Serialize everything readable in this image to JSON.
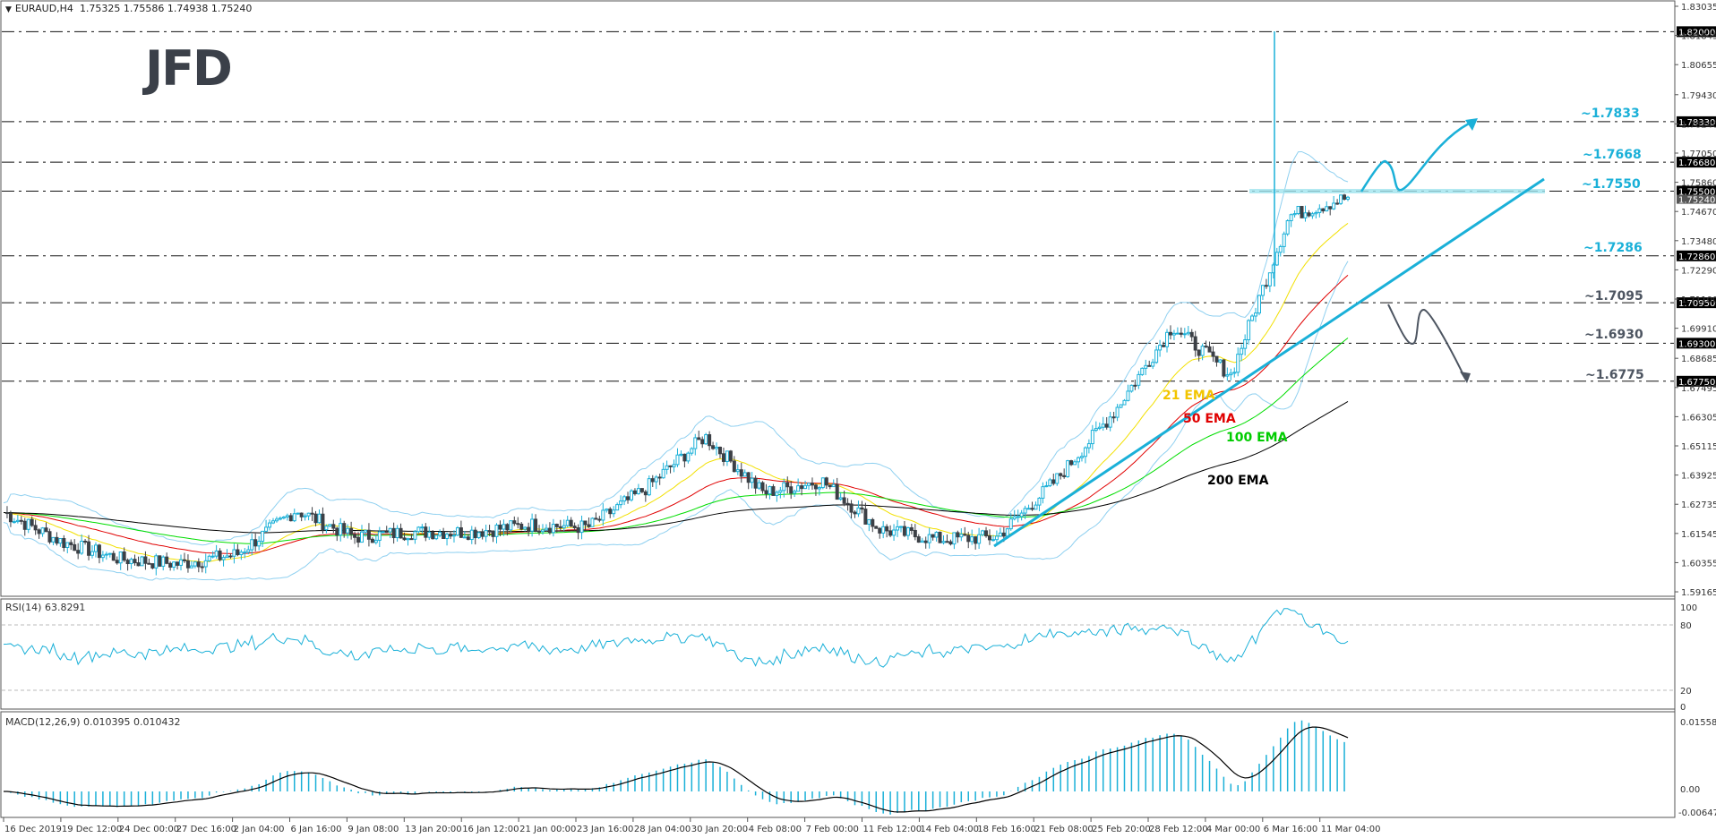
{
  "header": {
    "symbol": "EURAUD,H4",
    "ohlc": "1.75325 1.75586 1.74938 1.75240"
  },
  "logo": "JFD",
  "rsi": {
    "label": "RSI(14) 63.8291",
    "levels": [
      "100",
      "80",
      "20",
      "0"
    ]
  },
  "macd": {
    "label": "MACD(12,26,9) 0.010395 0.010432",
    "levels": [
      "0.015581",
      "0.00",
      "-0.006478"
    ]
  },
  "colors": {
    "accent": "#1ab0d8",
    "bear": "#3d4046",
    "ema21": "#f2e000",
    "ema50": "#e00000",
    "ema100": "#00dd00",
    "ema200": "#000000",
    "bands": "#8fd0f0",
    "support_text": "#4d5561"
  },
  "chart_data": {
    "type": "line",
    "title": "EURAUD,H4 1.75325 1.75586 1.74938 1.75240",
    "xlabel": "",
    "ylabel": "",
    "ylim": [
      1.59165,
      1.83035
    ],
    "price_ticks": [
      "1.83035",
      "1.81845",
      "1.80655",
      "1.79430",
      "1.78240",
      "1.77050",
      "1.75860",
      "1.74670",
      "1.73480",
      "1.72290",
      "1.71100",
      "1.69910",
      "1.68685",
      "1.67495",
      "1.66305",
      "1.65115",
      "1.63925",
      "1.62735",
      "1.61545",
      "1.60355",
      "1.59165"
    ],
    "x_ticks": [
      "16 Dec 2019",
      "19 Dec 12:00",
      "24 Dec 00:00",
      "27 Dec 16:00",
      "2 Jan 04:00",
      "6 Jan 16:00",
      "9 Jan 08:00",
      "13 Jan 20:00",
      "16 Jan 12:00",
      "21 Jan 00:00",
      "23 Jan 16:00",
      "28 Jan 04:00",
      "30 Jan 20:00",
      "4 Feb 08:00",
      "7 Feb 00:00",
      "11 Feb 12:00",
      "14 Feb 04:00",
      "18 Feb 16:00",
      "21 Feb 08:00",
      "25 Feb 20:00",
      "28 Feb 12:00",
      "4 Mar 00:00",
      "6 Mar 16:00",
      "11 Mar 04:00"
    ],
    "horizontal_levels": [
      {
        "price": 1.82,
        "tag": "1.82000",
        "label": ""
      },
      {
        "price": 1.7833,
        "tag": "1.78330",
        "label": "~1.7833"
      },
      {
        "price": 1.7668,
        "tag": "1.76680",
        "label": "~1.7668"
      },
      {
        "price": 1.755,
        "tag": "1.75500",
        "label": "~1.7550"
      },
      {
        "price": 1.7286,
        "tag": "1.72860",
        "label": "~1.7286"
      },
      {
        "price": 1.7095,
        "tag": "1.70950",
        "label": "~1.7095"
      },
      {
        "price": 1.693,
        "tag": "1.69300",
        "label": "~1.6930"
      },
      {
        "price": 1.6775,
        "tag": "1.67750",
        "label": "~1.6775"
      }
    ],
    "current_price": "1.75240",
    "series": [
      {
        "name": "21 EMA",
        "color": "#f2e000"
      },
      {
        "name": "50 EMA",
        "color": "#e00000"
      },
      {
        "name": "100 EMA",
        "color": "#00dd00"
      },
      {
        "name": "200 EMA",
        "color": "#000000"
      }
    ],
    "approx_close_path": [
      {
        "x": "16 Dec 2019",
        "y": 1.624
      },
      {
        "x": "19 Dec 12:00",
        "y": 1.612
      },
      {
        "x": "24 Dec 00:00",
        "y": 1.605
      },
      {
        "x": "27 Dec 16:00",
        "y": 1.603
      },
      {
        "x": "2 Jan 04:00",
        "y": 1.607
      },
      {
        "x": "6 Jan 16:00",
        "y": 1.625
      },
      {
        "x": "9 Jan 08:00",
        "y": 1.614
      },
      {
        "x": "13 Jan 20:00",
        "y": 1.616
      },
      {
        "x": "16 Jan 12:00",
        "y": 1.616
      },
      {
        "x": "21 Jan 00:00",
        "y": 1.619
      },
      {
        "x": "23 Jan 16:00",
        "y": 1.618
      },
      {
        "x": "28 Jan 04:00",
        "y": 1.634
      },
      {
        "x": "30 Jan 20:00",
        "y": 1.655
      },
      {
        "x": "4 Feb 08:00",
        "y": 1.632
      },
      {
        "x": "7 Feb 00:00",
        "y": 1.637
      },
      {
        "x": "11 Feb 12:00",
        "y": 1.617
      },
      {
        "x": "14 Feb 04:00",
        "y": 1.613
      },
      {
        "x": "18 Feb 16:00",
        "y": 1.614
      },
      {
        "x": "21 Feb 08:00",
        "y": 1.637
      },
      {
        "x": "25 Feb 20:00",
        "y": 1.665
      },
      {
        "x": "28 Feb 12:00",
        "y": 1.7
      },
      {
        "x": "4 Mar 00:00",
        "y": 1.68
      },
      {
        "x": "6 Mar 16:00",
        "y": 1.745
      },
      {
        "x": "11 Mar 04:00",
        "y": 1.7524
      }
    ],
    "annotations": [
      "21 EMA",
      "50 EMA",
      "100 EMA",
      "200 EMA",
      "~1.7833",
      "~1.7668",
      "~1.7550",
      "~1.7286",
      "~1.7095",
      "~1.6930",
      "~1.6775"
    ],
    "rsi_range": [
      0,
      100
    ],
    "macd_range": [
      -0.006478,
      0.015581
    ],
    "grid": false,
    "legend_position": "inline"
  }
}
